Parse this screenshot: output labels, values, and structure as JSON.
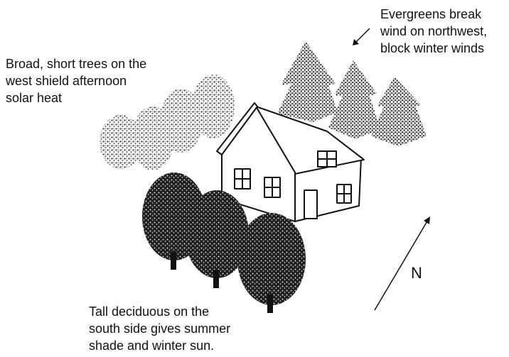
{
  "labels": {
    "evergreens": [
      "Evergreens break",
      "wind on northwest,",
      "block winter winds"
    ],
    "broad": [
      "Broad, short trees on the",
      "west shield afternoon",
      "solar heat"
    ],
    "tall": [
      "Tall deciduous on the",
      "south side gives summer",
      "shade and winter sun."
    ],
    "north": "N"
  }
}
